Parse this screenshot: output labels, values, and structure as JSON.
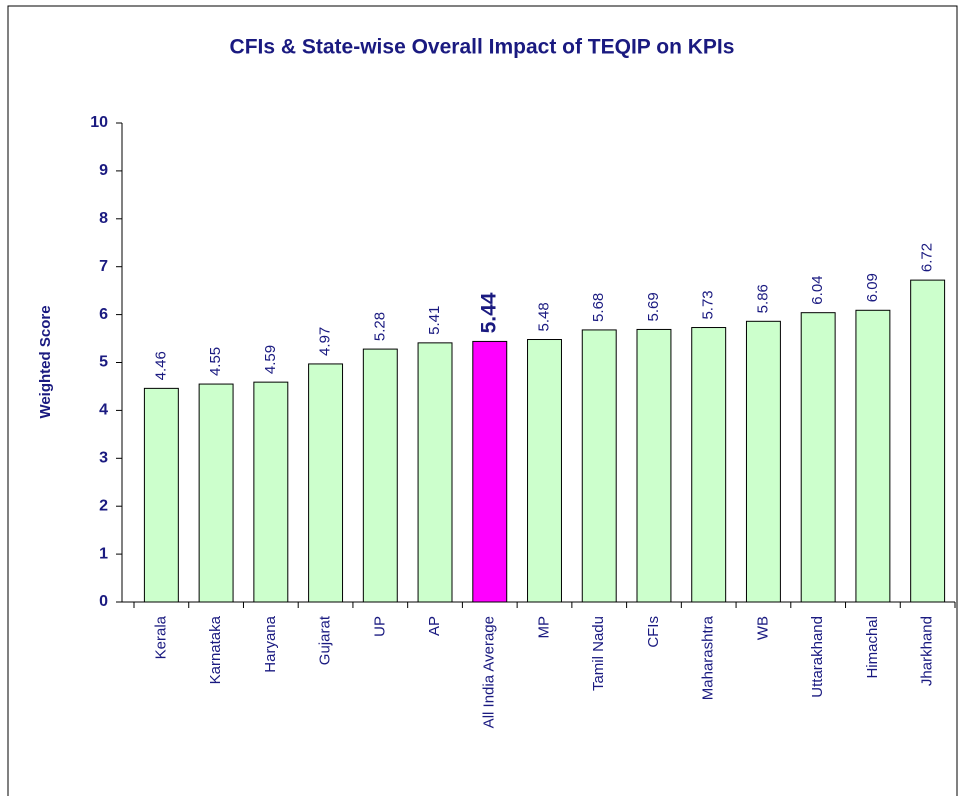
{
  "chart_data": {
    "type": "bar",
    "title": "CFIs & State-wise Overall Impact of TEQIP on KPIs",
    "y_label": "Weighted Score",
    "categories": [
      "Kerala",
      "Karnataka",
      "Haryana",
      "Gujarat",
      "UP",
      "AP",
      "All India Average",
      "MP",
      "Tamil Nadu",
      "CFIs",
      "Maharashtra",
      "WB",
      "Uttarakhand",
      "Himachal",
      "Jharkhand"
    ],
    "values": [
      4.46,
      4.55,
      4.59,
      4.97,
      5.28,
      5.41,
      5.44,
      5.48,
      5.68,
      5.69,
      5.73,
      5.86,
      6.04,
      6.09,
      6.72
    ],
    "colors": [
      "#ccffcc",
      "#ccffcc",
      "#ccffcc",
      "#ccffcc",
      "#ccffcc",
      "#ccffcc",
      "#ff00ff",
      "#ccffcc",
      "#ccffcc",
      "#ccffcc",
      "#ccffcc",
      "#ccffcc",
      "#ccffcc",
      "#ccffcc",
      "#ccffcc"
    ],
    "ylim": [
      0,
      10
    ],
    "yticks": [
      0,
      1,
      2,
      3,
      4,
      5,
      6,
      7,
      8,
      9,
      10
    ],
    "grid": false
  }
}
